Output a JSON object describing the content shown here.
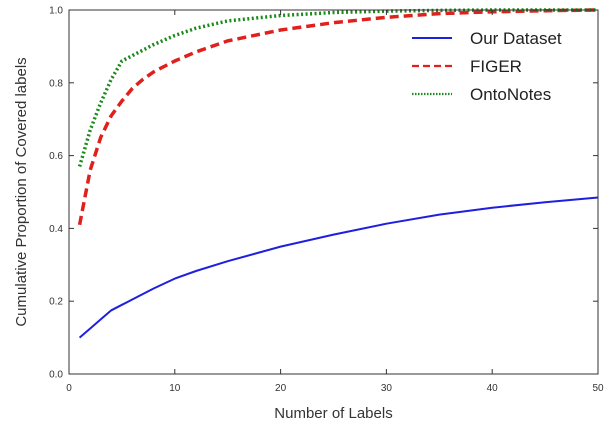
{
  "chart_data": {
    "type": "line",
    "title": "",
    "xlabel": "Number of Labels",
    "ylabel": "Cumulative Proportion of Covered labels",
    "xlim": [
      0,
      50
    ],
    "ylim": [
      0.0,
      1.0
    ],
    "xticks": [
      0,
      10,
      20,
      30,
      40,
      50
    ],
    "yticks": [
      0.0,
      0.2,
      0.4,
      0.6,
      0.8,
      1.0
    ],
    "ytick_labels": [
      "0.0",
      "0.2",
      "0.4",
      "0.6",
      "0.8",
      "1.0"
    ],
    "grid": false,
    "legend_position": "top-right",
    "series": [
      {
        "name": "Our Dataset",
        "color": "#1f1fe0",
        "style": "solid",
        "x": [
          1,
          2,
          3,
          4,
          5,
          6,
          8,
          10,
          12,
          15,
          20,
          25,
          30,
          35,
          40,
          45,
          50
        ],
        "y": [
          0.1,
          0.125,
          0.15,
          0.175,
          0.19,
          0.205,
          0.235,
          0.262,
          0.283,
          0.31,
          0.35,
          0.383,
          0.413,
          0.438,
          0.457,
          0.472,
          0.485
        ]
      },
      {
        "name": "FIGER",
        "color": "#e0201c",
        "style": "dashed",
        "x": [
          1,
          2,
          3,
          4,
          5,
          6,
          7,
          8,
          10,
          12,
          15,
          20,
          25,
          30,
          35,
          40,
          45,
          50
        ],
        "y": [
          0.41,
          0.56,
          0.65,
          0.71,
          0.75,
          0.785,
          0.81,
          0.83,
          0.86,
          0.885,
          0.915,
          0.945,
          0.965,
          0.98,
          0.99,
          0.995,
          0.998,
          1.0
        ]
      },
      {
        "name": "OntoNotes",
        "color": "#1a8a1a",
        "style": "dotted",
        "x": [
          1,
          2,
          3,
          4,
          5,
          6,
          8,
          10,
          12,
          15,
          20,
          25,
          30,
          35,
          40,
          45,
          50
        ],
        "y": [
          0.57,
          0.67,
          0.745,
          0.81,
          0.86,
          0.875,
          0.905,
          0.93,
          0.95,
          0.97,
          0.985,
          0.993,
          0.997,
          0.999,
          1.0,
          1.0,
          1.0
        ]
      }
    ]
  }
}
